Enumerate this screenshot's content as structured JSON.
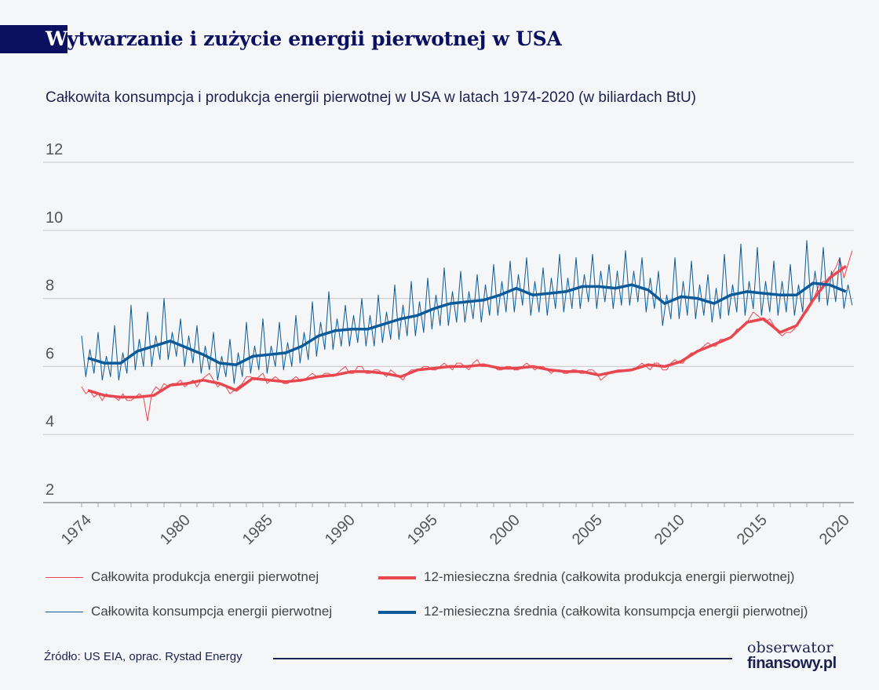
{
  "header": {
    "title_first_letter": "W",
    "title_rest": "ytwarzanie i zużycie energii pierwotnej w USA",
    "subtitle": "Całkowita konsumpcja i produkcja energii pierwotnej w USA w latach 1974-2020 (w biliardach BtU)"
  },
  "footer": {
    "source": "Źródło: US EIA, oprac. Rystad Energy",
    "logo_line1": "obserwator",
    "logo_line2": "finansowy.pl"
  },
  "colors": {
    "production": "#e8474f",
    "consumption": "#0b5a99",
    "title_bg": "#0b1160"
  },
  "chart_data": {
    "type": "line",
    "title": "Całkowita konsumpcja i produkcja energii pierwotnej w USA w latach 1974-2020 (w biliardach BtU)",
    "xlabel": "",
    "ylabel": "",
    "ylim": [
      2,
      12
    ],
    "xlim": [
      1974,
      2020.75
    ],
    "yticks": [
      "2",
      "4",
      "6",
      "8",
      "10",
      "12"
    ],
    "xticks": [
      "1974",
      "1980",
      "1985",
      "1990",
      "1995",
      "2000",
      "2005",
      "2010",
      "2015",
      "2020"
    ],
    "grid": true,
    "legend_placement": "bottom",
    "years": [
      1974,
      1975,
      1976,
      1977,
      1978,
      1979,
      1980,
      1981,
      1982,
      1983,
      1984,
      1985,
      1986,
      1987,
      1988,
      1989,
      1990,
      1991,
      1992,
      1993,
      1994,
      1995,
      1996,
      1997,
      1998,
      1999,
      2000,
      2001,
      2002,
      2003,
      2004,
      2005,
      2006,
      2007,
      2008,
      2009,
      2010,
      2011,
      2012,
      2013,
      2014,
      2015,
      2016,
      2017,
      2018,
      2019,
      2020
    ],
    "series": [
      {
        "name": "Całkowita produkcja energii pierwotnej",
        "style": "thin",
        "color_key": "production",
        "quarterly": [
          [
            5.4,
            5.2,
            5.3,
            5.1
          ],
          [
            5.2,
            5.0,
            5.2,
            5.1
          ],
          [
            5.1,
            5.0,
            5.2,
            5.0
          ],
          [
            5.0,
            5.1,
            5.2,
            5.1
          ],
          [
            4.4,
            5.2,
            5.4,
            5.3
          ],
          [
            5.5,
            5.4,
            5.5,
            5.5
          ],
          [
            5.6,
            5.4,
            5.5,
            5.6
          ],
          [
            5.4,
            5.6,
            5.7,
            5.8
          ],
          [
            5.6,
            5.4,
            5.5,
            5.4
          ],
          [
            5.2,
            5.3,
            5.4,
            5.5
          ],
          [
            5.7,
            5.7,
            5.6,
            5.7
          ],
          [
            5.8,
            5.5,
            5.6,
            5.7
          ],
          [
            5.6,
            5.5,
            5.5,
            5.6
          ],
          [
            5.7,
            5.6,
            5.6,
            5.7
          ],
          [
            5.8,
            5.7,
            5.7,
            5.8
          ],
          [
            5.8,
            5.7,
            5.8,
            5.9
          ],
          [
            6.0,
            5.8,
            5.8,
            6.0
          ],
          [
            6.0,
            5.8,
            5.8,
            5.9
          ],
          [
            5.9,
            5.8,
            5.7,
            5.9
          ],
          [
            5.8,
            5.7,
            5.6,
            5.8
          ],
          [
            5.9,
            5.9,
            5.9,
            6.0
          ],
          [
            6.0,
            5.9,
            5.9,
            6.0
          ],
          [
            6.1,
            6.0,
            5.9,
            6.1
          ],
          [
            6.1,
            6.0,
            5.9,
            6.1
          ],
          [
            6.2,
            6.0,
            6.0,
            6.0
          ],
          [
            6.0,
            5.9,
            5.9,
            6.0
          ],
          [
            6.0,
            5.9,
            5.9,
            6.0
          ],
          [
            6.1,
            6.0,
            5.9,
            6.0
          ],
          [
            6.0,
            5.9,
            5.8,
            5.9
          ],
          [
            5.9,
            5.8,
            5.8,
            5.9
          ],
          [
            5.9,
            5.8,
            5.8,
            5.9
          ],
          [
            5.9,
            5.8,
            5.6,
            5.7
          ],
          [
            5.8,
            5.8,
            5.9,
            5.9
          ],
          [
            5.9,
            5.9,
            5.9,
            6.0
          ],
          [
            6.1,
            6.0,
            5.9,
            6.1
          ],
          [
            6.1,
            5.9,
            5.9,
            6.1
          ],
          [
            6.2,
            6.1,
            6.1,
            6.3
          ],
          [
            6.4,
            6.4,
            6.5,
            6.6
          ],
          [
            6.7,
            6.6,
            6.6,
            6.8
          ],
          [
            6.8,
            6.8,
            6.9,
            7.1
          ],
          [
            7.1,
            7.2,
            7.4,
            7.6
          ],
          [
            7.5,
            7.4,
            7.3,
            7.4
          ],
          [
            7.2,
            7.0,
            6.9,
            7.0
          ],
          [
            7.0,
            7.1,
            7.3,
            7.5
          ],
          [
            7.6,
            7.8,
            8.1,
            8.4
          ],
          [
            8.5,
            8.5,
            8.7,
            8.9
          ],
          [
            9.2,
            8.6,
            9.0,
            9.4
          ]
        ]
      },
      {
        "name": "12-miesieczna średnia (całkowita produkcja energii pierwotnej)",
        "style": "thick",
        "color_key": "production",
        "annual": [
          5.3,
          5.15,
          5.1,
          5.1,
          5.15,
          5.45,
          5.5,
          5.6,
          5.5,
          5.3,
          5.65,
          5.6,
          5.55,
          5.6,
          5.7,
          5.75,
          5.85,
          5.85,
          5.8,
          5.7,
          5.9,
          5.95,
          6.0,
          6.0,
          6.05,
          5.95,
          5.95,
          6.0,
          5.9,
          5.85,
          5.85,
          5.75,
          5.85,
          5.9,
          6.05,
          6.0,
          6.15,
          6.45,
          6.65,
          6.85,
          7.3,
          7.4,
          7.0,
          7.2,
          7.95,
          8.6,
          8.95
        ]
      },
      {
        "name": "Całkowita konsumpcja energii pierwotnej",
        "style": "thin",
        "color_key": "consumption",
        "quarterly": [
          [
            6.9,
            5.7,
            6.5,
            5.8
          ],
          [
            7.0,
            5.6,
            6.3,
            5.7
          ],
          [
            7.2,
            5.6,
            6.4,
            5.8
          ],
          [
            7.8,
            5.9,
            6.8,
            6.0
          ],
          [
            7.6,
            6.0,
            6.9,
            6.2
          ],
          [
            8.0,
            6.2,
            7.0,
            6.3
          ],
          [
            7.4,
            6.0,
            6.9,
            6.1
          ],
          [
            7.2,
            5.8,
            6.6,
            5.9
          ],
          [
            7.0,
            5.6,
            6.3,
            5.7
          ],
          [
            6.8,
            5.5,
            6.4,
            5.7
          ],
          [
            7.3,
            5.8,
            6.6,
            5.9
          ],
          [
            7.4,
            5.8,
            6.6,
            6.0
          ],
          [
            7.3,
            5.9,
            6.7,
            6.0
          ],
          [
            7.5,
            6.1,
            7.0,
            6.2
          ],
          [
            7.9,
            6.3,
            7.3,
            6.5
          ],
          [
            8.2,
            6.5,
            7.4,
            6.6
          ],
          [
            7.8,
            6.6,
            7.5,
            6.7
          ],
          [
            8.0,
            6.6,
            7.5,
            6.6
          ],
          [
            8.1,
            6.7,
            7.6,
            6.8
          ],
          [
            8.4,
            6.8,
            7.8,
            6.9
          ],
          [
            8.5,
            6.9,
            7.9,
            7.0
          ],
          [
            8.6,
            7.1,
            8.1,
            7.2
          ],
          [
            8.9,
            7.2,
            8.2,
            7.3
          ],
          [
            8.8,
            7.3,
            8.2,
            7.4
          ],
          [
            8.7,
            7.3,
            8.4,
            7.5
          ],
          [
            9.0,
            7.5,
            8.5,
            7.6
          ],
          [
            9.1,
            7.6,
            8.7,
            7.8
          ],
          [
            9.2,
            7.5,
            8.5,
            7.6
          ],
          [
            8.9,
            7.5,
            8.6,
            7.7
          ],
          [
            9.3,
            7.6,
            8.6,
            7.7
          ],
          [
            9.2,
            7.7,
            8.7,
            7.9
          ],
          [
            9.3,
            7.7,
            8.8,
            7.9
          ],
          [
            9.0,
            7.7,
            8.8,
            7.8
          ],
          [
            9.4,
            7.8,
            8.8,
            7.9
          ],
          [
            9.2,
            7.6,
            8.6,
            7.7
          ],
          [
            8.8,
            7.2,
            8.1,
            7.4
          ],
          [
            9.2,
            7.4,
            8.5,
            7.5
          ],
          [
            9.1,
            7.4,
            8.4,
            7.5
          ],
          [
            8.7,
            7.3,
            8.3,
            7.4
          ],
          [
            9.3,
            7.5,
            8.4,
            7.6
          ],
          [
            9.6,
            7.5,
            8.5,
            7.7
          ],
          [
            9.5,
            7.5,
            8.5,
            7.6
          ],
          [
            9.1,
            7.5,
            8.5,
            7.6
          ],
          [
            9.0,
            7.5,
            8.4,
            7.6
          ],
          [
            9.7,
            7.8,
            8.8,
            7.9
          ],
          [
            9.5,
            7.8,
            8.8,
            7.9
          ],
          [
            9.2,
            7.7,
            8.4,
            7.8
          ]
        ]
      },
      {
        "name": "12-miesieczna średnia (całkowita konsumpcja energii pierwotnej)",
        "style": "thick",
        "color_key": "consumption",
        "annual": [
          6.25,
          6.1,
          6.1,
          6.45,
          6.6,
          6.75,
          6.55,
          6.35,
          6.1,
          6.05,
          6.3,
          6.35,
          6.4,
          6.6,
          6.9,
          7.05,
          7.1,
          7.1,
          7.25,
          7.4,
          7.5,
          7.7,
          7.85,
          7.9,
          7.95,
          8.1,
          8.3,
          8.1,
          8.15,
          8.2,
          8.35,
          8.35,
          8.3,
          8.4,
          8.25,
          7.85,
          8.05,
          8.0,
          7.85,
          8.1,
          8.2,
          8.15,
          8.1,
          8.1,
          8.45,
          8.4,
          8.2
        ]
      }
    ]
  }
}
